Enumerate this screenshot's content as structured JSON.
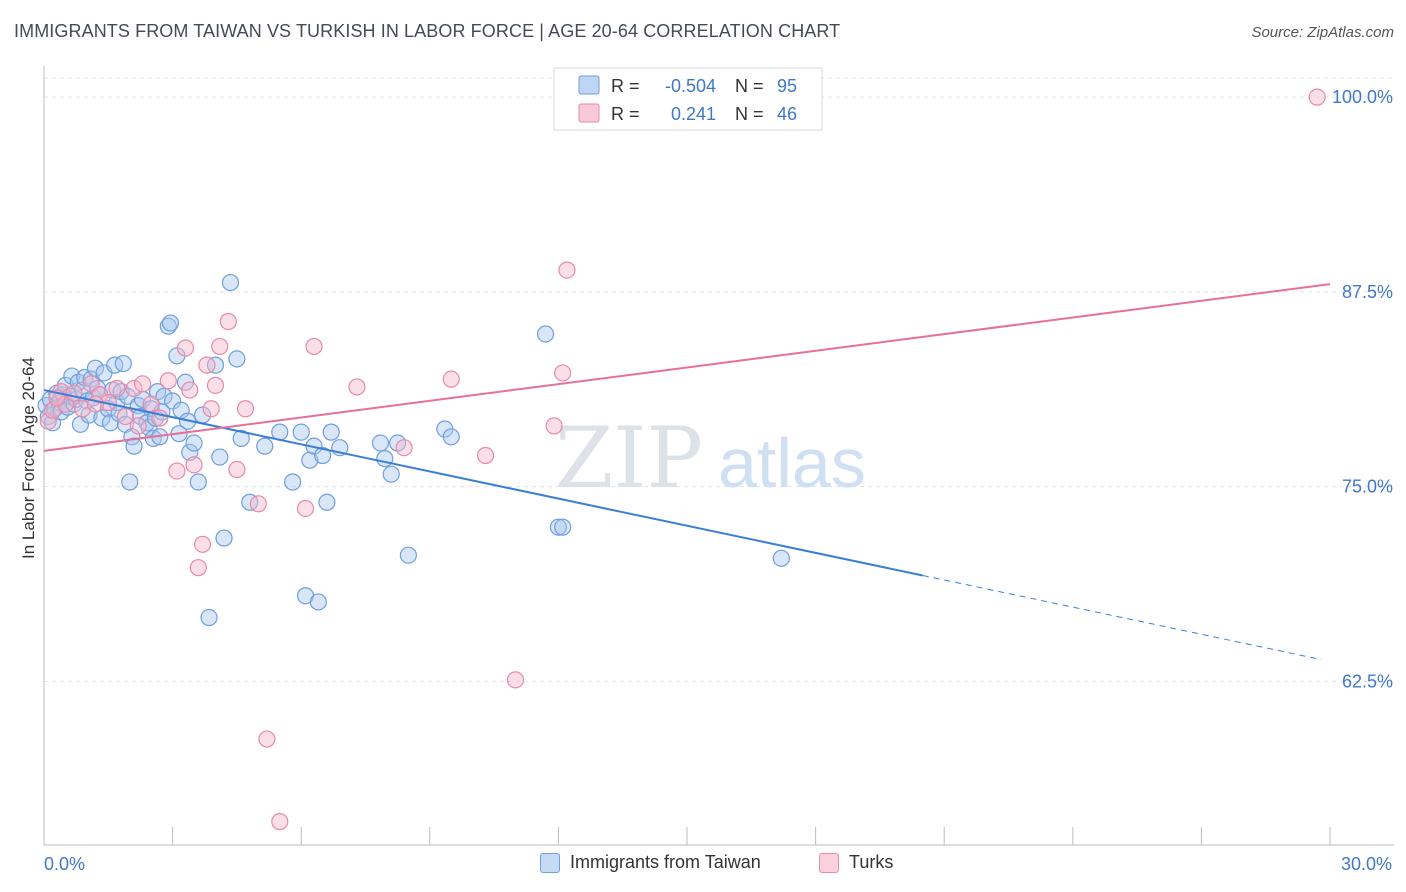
{
  "title": "IMMIGRANTS FROM TAIWAN VS TURKISH IN LABOR FORCE | AGE 20-64 CORRELATION CHART",
  "source": "Source: ZipAtlas.com",
  "watermark": {
    "zip": "ZIP",
    "atlas": "atlas"
  },
  "legend_top": [
    {
      "r_label": "R =",
      "r_value": "-0.504",
      "n_label": "N =",
      "n_value": "95"
    },
    {
      "r_label": "R =",
      "r_value": "0.241",
      "n_label": "N =",
      "n_value": "46"
    }
  ],
  "legend_bottom": [
    {
      "label": "Immigrants from Taiwan"
    },
    {
      "label": "Turks"
    }
  ],
  "colors": {
    "blue_fill": "#a8c8f0",
    "blue_stroke": "#6f9fdc",
    "blue_line": "#3a7fd5",
    "pink_fill": "#f6b8cb",
    "pink_stroke": "#e88aa8",
    "pink_line": "#e5709a",
    "axis_text": "#3f78c9",
    "grid": "#dfe3ea"
  },
  "chart_data": {
    "type": "scatter",
    "title": "IMMIGRANTS FROM TAIWAN VS TURKISH IN LABOR FORCE | AGE 20-64 CORRELATION CHART",
    "xlabel": "",
    "ylabel": "In Labor Force | Age 20-64",
    "xlim": [
      0,
      30
    ],
    "ylim": [
      52,
      102
    ],
    "x_tick_labels": [
      {
        "value": 0,
        "label": "0.0%"
      },
      {
        "value": 30,
        "label": "30.0%"
      }
    ],
    "y_tick_labels": [
      {
        "value": 100,
        "label": "100.0%"
      },
      {
        "value": 87.5,
        "label": "87.5%"
      },
      {
        "value": 75,
        "label": "75.0%"
      },
      {
        "value": 62.5,
        "label": "62.5%"
      }
    ],
    "series": [
      {
        "name": "Immigrants from Taiwan",
        "color": "blue",
        "trend": {
          "x0": 0,
          "y0": 81.2,
          "x1": 20.5,
          "y1": 69.3,
          "dash_to_x": 29.8,
          "dash_to_y": 63.9
        },
        "points": [
          [
            0.05,
            80.2
          ],
          [
            0.1,
            79.5
          ],
          [
            0.15,
            80.6
          ],
          [
            0.2,
            79.1
          ],
          [
            0.25,
            80.0
          ],
          [
            0.3,
            81.0
          ],
          [
            0.35,
            80.4
          ],
          [
            0.4,
            79.8
          ],
          [
            0.45,
            80.9
          ],
          [
            0.5,
            81.5
          ],
          [
            0.55,
            80.1
          ],
          [
            0.6,
            80.8
          ],
          [
            0.65,
            82.1
          ],
          [
            0.7,
            80.3
          ],
          [
            0.75,
            80.6
          ],
          [
            0.8,
            81.7
          ],
          [
            0.85,
            79.0
          ],
          [
            0.9,
            81.2
          ],
          [
            0.95,
            82.0
          ],
          [
            1.0,
            80.5
          ],
          [
            1.05,
            79.6
          ],
          [
            1.1,
            81.9
          ],
          [
            1.15,
            80.7
          ],
          [
            1.2,
            82.6
          ],
          [
            1.25,
            81.3
          ],
          [
            1.3,
            80.9
          ],
          [
            1.35,
            79.4
          ],
          [
            1.4,
            82.3
          ],
          [
            1.5,
            80.0
          ],
          [
            1.55,
            79.1
          ],
          [
            1.6,
            81.2
          ],
          [
            1.65,
            82.8
          ],
          [
            1.7,
            80.4
          ],
          [
            1.75,
            79.7
          ],
          [
            1.8,
            81.1
          ],
          [
            1.85,
            82.9
          ],
          [
            1.9,
            79.0
          ],
          [
            1.95,
            80.8
          ],
          [
            2.0,
            75.3
          ],
          [
            2.05,
            78.2
          ],
          [
            2.1,
            77.6
          ],
          [
            2.2,
            80.2
          ],
          [
            2.25,
            79.5
          ],
          [
            2.3,
            80.6
          ],
          [
            2.4,
            79.1
          ],
          [
            2.45,
            78.8
          ],
          [
            2.5,
            80.0
          ],
          [
            2.55,
            78.1
          ],
          [
            2.6,
            79.4
          ],
          [
            2.65,
            81.1
          ],
          [
            2.7,
            78.2
          ],
          [
            2.75,
            79.8
          ],
          [
            2.8,
            80.8
          ],
          [
            2.9,
            85.3
          ],
          [
            2.95,
            85.5
          ],
          [
            3.0,
            80.5
          ],
          [
            3.1,
            83.4
          ],
          [
            3.15,
            78.4
          ],
          [
            3.2,
            79.9
          ],
          [
            3.3,
            81.7
          ],
          [
            3.35,
            79.2
          ],
          [
            3.4,
            77.2
          ],
          [
            3.5,
            77.8
          ],
          [
            3.6,
            75.3
          ],
          [
            3.7,
            79.6
          ],
          [
            3.85,
            66.6
          ],
          [
            4.0,
            82.8
          ],
          [
            4.1,
            76.9
          ],
          [
            4.2,
            71.7
          ],
          [
            4.35,
            88.1
          ],
          [
            4.5,
            83.2
          ],
          [
            4.6,
            78.1
          ],
          [
            4.8,
            74.0
          ],
          [
            5.15,
            77.6
          ],
          [
            5.5,
            78.5
          ],
          [
            5.8,
            75.3
          ],
          [
            6.0,
            78.5
          ],
          [
            6.1,
            68.0
          ],
          [
            6.2,
            76.7
          ],
          [
            6.3,
            77.6
          ],
          [
            6.4,
            67.6
          ],
          [
            6.5,
            77.0
          ],
          [
            6.6,
            74.0
          ],
          [
            6.7,
            78.5
          ],
          [
            6.9,
            77.5
          ],
          [
            7.85,
            77.8
          ],
          [
            7.95,
            76.8
          ],
          [
            8.1,
            75.8
          ],
          [
            8.25,
            77.8
          ],
          [
            8.5,
            70.6
          ],
          [
            9.35,
            78.7
          ],
          [
            9.5,
            78.2
          ],
          [
            11.7,
            84.8
          ],
          [
            12.0,
            72.4
          ],
          [
            12.1,
            72.4
          ],
          [
            17.2,
            70.4
          ]
        ]
      },
      {
        "name": "Turks",
        "color": "pink",
        "trend": {
          "x0": 0,
          "y0": 77.3,
          "x1": 30,
          "y1": 88.0
        },
        "points": [
          [
            0.1,
            79.2
          ],
          [
            0.2,
            79.9
          ],
          [
            0.4,
            81.1
          ],
          [
            0.5,
            80.3
          ],
          [
            0.7,
            81.0
          ],
          [
            0.9,
            80.0
          ],
          [
            1.1,
            81.6
          ],
          [
            1.3,
            80.9
          ],
          [
            1.5,
            80.4
          ],
          [
            1.7,
            81.3
          ],
          [
            1.9,
            79.5
          ],
          [
            2.1,
            81.3
          ],
          [
            2.3,
            81.6
          ],
          [
            2.5,
            80.3
          ],
          [
            2.7,
            79.4
          ],
          [
            2.9,
            81.8
          ],
          [
            3.1,
            76.0
          ],
          [
            3.3,
            83.9
          ],
          [
            3.4,
            81.2
          ],
          [
            3.5,
            76.4
          ],
          [
            3.6,
            69.8
          ],
          [
            3.7,
            71.3
          ],
          [
            3.8,
            82.8
          ],
          [
            3.9,
            80.0
          ],
          [
            4.0,
            81.5
          ],
          [
            4.1,
            84.0
          ],
          [
            4.3,
            85.6
          ],
          [
            4.5,
            76.1
          ],
          [
            4.7,
            80.0
          ],
          [
            5.0,
            73.9
          ],
          [
            5.2,
            58.8
          ],
          [
            5.5,
            53.5
          ],
          [
            6.1,
            73.6
          ],
          [
            6.3,
            84.0
          ],
          [
            7.3,
            81.4
          ],
          [
            8.4,
            77.5
          ],
          [
            9.5,
            81.9
          ],
          [
            10.3,
            77.0
          ],
          [
            11.0,
            62.6
          ],
          [
            11.9,
            78.9
          ],
          [
            12.1,
            82.3
          ],
          [
            12.2,
            88.9
          ],
          [
            2.2,
            78.9
          ],
          [
            1.2,
            80.3
          ],
          [
            0.3,
            80.7
          ],
          [
            29.7,
            100.0
          ]
        ]
      }
    ]
  }
}
